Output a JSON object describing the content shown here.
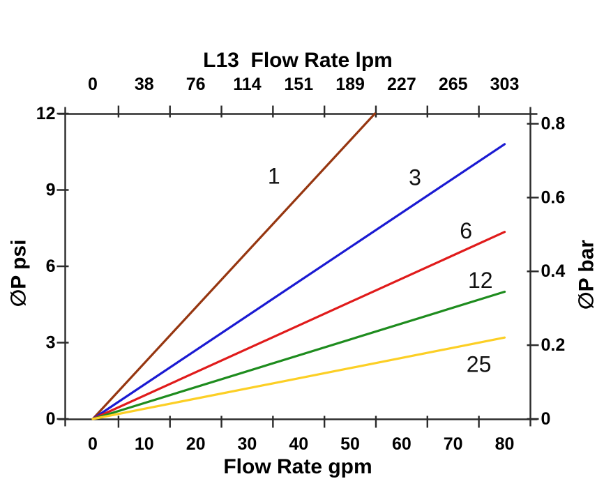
{
  "figure": {
    "top_axis_title": "L13  Flow Rate lpm",
    "bottom_axis_title": "Flow Rate gpm",
    "left_axis_title": "∅P psi",
    "right_axis_title": "∅P bar"
  },
  "chart_data": {
    "type": "line",
    "title": "L13  Flow Rate lpm",
    "xlabel": "Flow Rate gpm",
    "ylabel": "∅P psi",
    "ylabel_right": "∅P bar",
    "grid": false,
    "legend": "inline-labels-on-lines",
    "background": "#FFFFFF",
    "axis_color": "#2B2B2B",
    "text_color": "#000000",
    "x_range_gpm": [
      -5.4,
      85.1
    ],
    "y_range_psi": [
      0,
      12
    ],
    "bar_per_psi": 0.0689476,
    "top_axis": {
      "title": "L13  Flow Rate lpm",
      "unit": "lpm",
      "tick_labels": [
        "0",
        "38",
        "76",
        "114",
        "151",
        "189",
        "227",
        "265",
        "303"
      ],
      "tick_label_positions_gpm": [
        0,
        10,
        20,
        30,
        40,
        50,
        60,
        70,
        80
      ]
    },
    "bottom_axis": {
      "title": "Flow Rate gpm",
      "unit": "gpm",
      "tick_labels": [
        "0",
        "10",
        "20",
        "30",
        "40",
        "50",
        "60",
        "70",
        "80"
      ],
      "tick_label_positions_gpm": [
        0,
        10,
        20,
        30,
        40,
        50,
        60,
        70,
        80
      ]
    },
    "x_tick_marks_gpm": [
      5,
      15,
      25,
      35,
      45,
      55,
      65,
      75
    ],
    "left_axis": {
      "title": "∅P psi",
      "unit": "psi",
      "tick_labels": [
        "0",
        "3",
        "6",
        "9",
        "12"
      ],
      "tick_positions_psi": [
        0,
        3,
        6,
        9,
        12
      ]
    },
    "right_axis": {
      "title": "∅P bar",
      "unit": "bar",
      "tick_labels": [
        "0",
        "0.2",
        "0.4",
        "0.6",
        "0.8"
      ],
      "tick_positions_bar": [
        0,
        0.2,
        0.4,
        0.6,
        0.8
      ]
    },
    "series": [
      {
        "label": "1",
        "color": "#963610",
        "points_gpm_psi": [
          [
            0,
            0
          ],
          [
            54.8,
            12.0
          ]
        ],
        "label_at_gpm_psi": [
          35.2,
          9.55
        ]
      },
      {
        "label": "3",
        "color": "#1A1AD2",
        "points_gpm_psi": [
          [
            0,
            0
          ],
          [
            80,
            10.8
          ]
        ],
        "label_at_gpm_psi": [
          62.6,
          9.5
        ]
      },
      {
        "label": "6",
        "color": "#E01B1B",
        "points_gpm_psi": [
          [
            0,
            0
          ],
          [
            80,
            7.35
          ]
        ],
        "label_at_gpm_psi": [
          72.5,
          7.4
        ]
      },
      {
        "label": "12",
        "color": "#1E8C1E",
        "points_gpm_psi": [
          [
            0,
            0
          ],
          [
            80,
            5.0
          ]
        ],
        "label_at_gpm_psi": [
          75.3,
          5.45
        ]
      },
      {
        "label": "25",
        "color": "#FCCF25",
        "points_gpm_psi": [
          [
            0,
            0
          ],
          [
            80,
            3.2
          ]
        ],
        "label_at_gpm_psi": [
          75.0,
          2.15
        ]
      }
    ]
  }
}
